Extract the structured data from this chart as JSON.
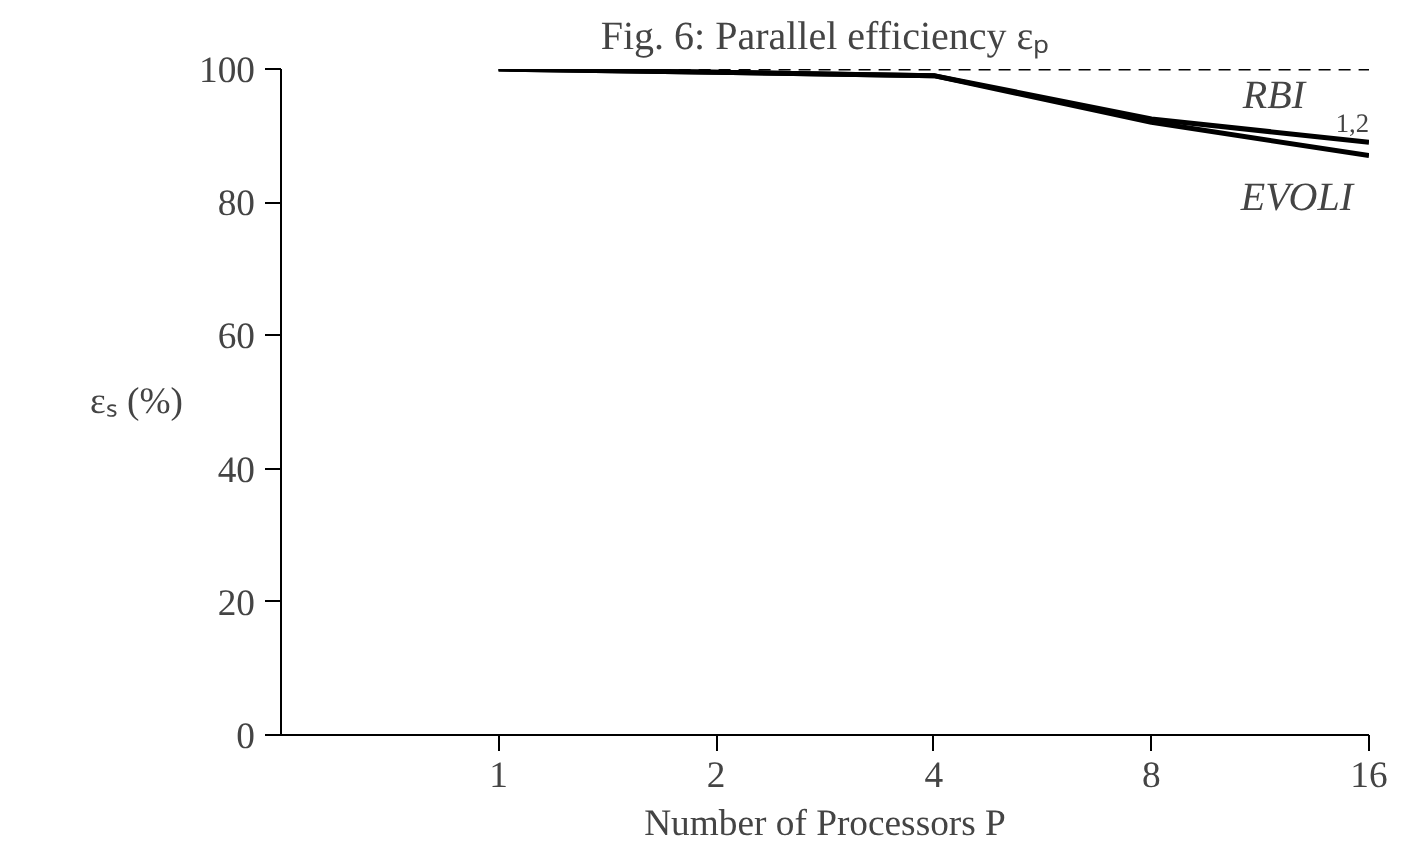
{
  "chart_data": {
    "type": "line",
    "title": "Fig. 6: Parallel efficiency εₚ",
    "xlabel": "Number of Processors P",
    "ylabel": "εₛ (%)",
    "x": [
      1,
      2,
      4,
      8,
      16
    ],
    "log": "x",
    "xlim": [
      0.5,
      16
    ],
    "xticks": [
      1,
      2,
      4,
      8,
      16
    ],
    "ylim": [
      0,
      100
    ],
    "yticks": [
      0,
      20,
      40,
      60,
      80,
      100
    ],
    "grid": false,
    "marker": "none",
    "series": [
      {
        "color": "#000000",
        "line_style": "dashed",
        "values": [
          100,
          100,
          100,
          100,
          100
        ]
      },
      {
        "name": "RBI$_{1,2}$",
        "color": "#000000",
        "line_style": "solid",
        "values": [
          100,
          99.5,
          99,
          92.5,
          89
        ]
      },
      {
        "name": "EVOLI",
        "color": "#000000",
        "line_style": "solid",
        "values": [
          100,
          99.5,
          99,
          92,
          87
        ]
      }
    ]
  }
}
